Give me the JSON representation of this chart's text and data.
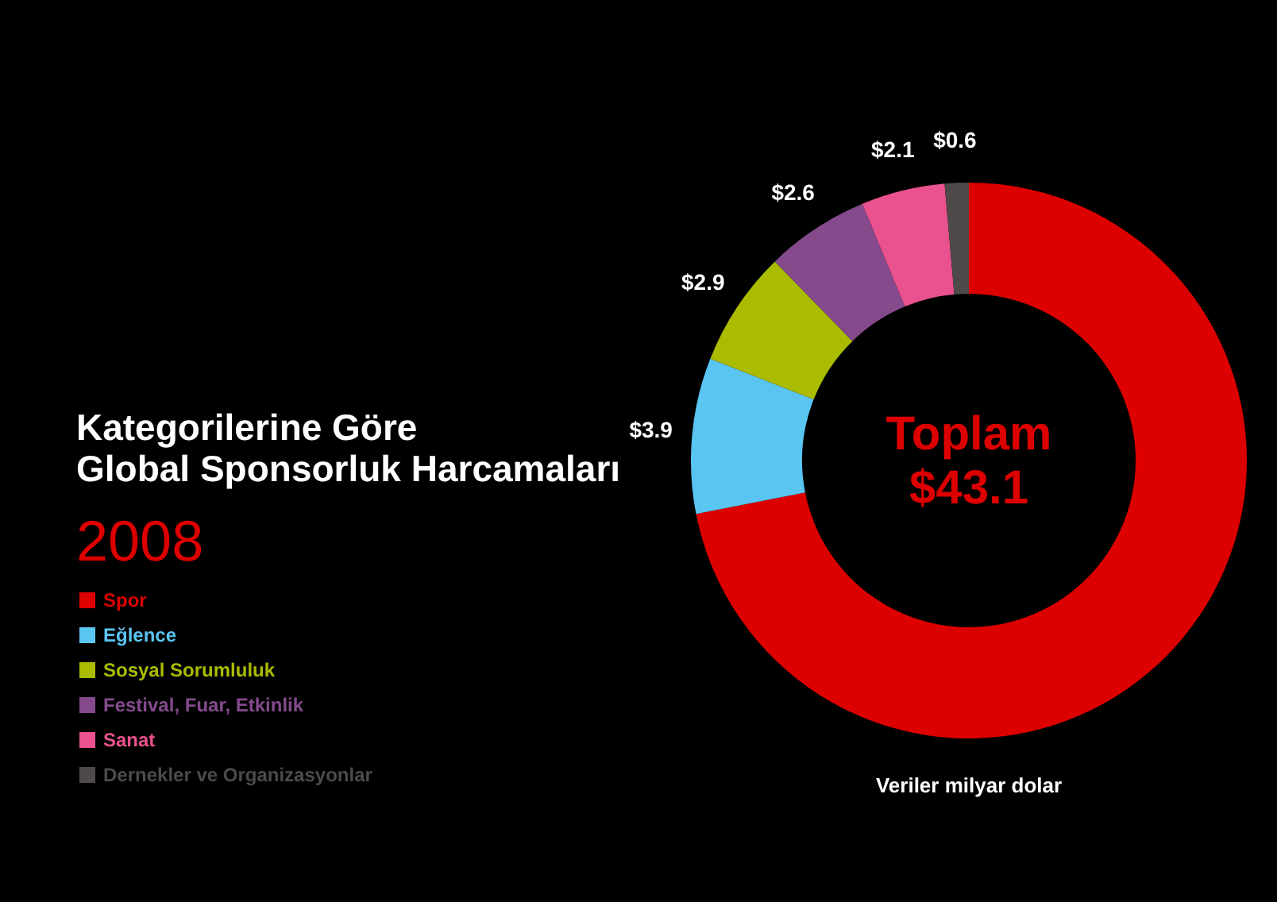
{
  "chart_data": {
    "type": "donut",
    "title": "Kategorilerine Göre\nGlobal Sponsorluk Harcamaları",
    "subtitle": "2008",
    "categories": [
      "Spor",
      "Eğlence",
      "Sosyal Sorumluluk",
      "Festival, Fuar, Etkinlik",
      "Sanat",
      "Dernekler ve Organizasyonlar"
    ],
    "values": [
      31.0,
      3.9,
      2.9,
      2.6,
      2.1,
      0.6
    ],
    "value_labels": [
      null,
      "$3.9",
      "$2.9",
      "$2.6",
      "$2.1",
      "$0.6"
    ],
    "colors": [
      "#dd0000",
      "#5bc5f2",
      "#aabb00",
      "#844a8c",
      "#e9528e",
      "#4f4a4a"
    ],
    "annotations": [
      "Toplam",
      "$43.1",
      "Veriler milyar dolar"
    ],
    "legend": "left"
  }
}
